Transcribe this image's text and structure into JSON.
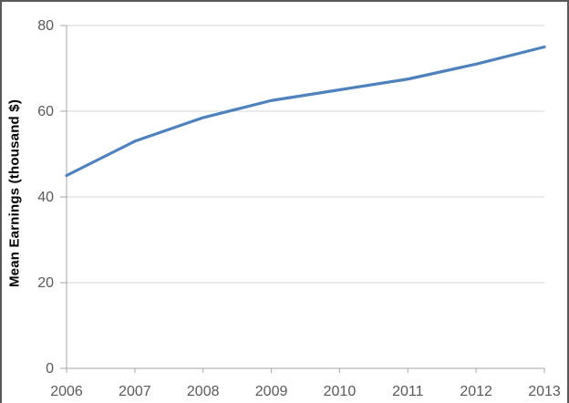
{
  "window": {
    "background": "#ffffff",
    "frame_border_color": "#595959"
  },
  "chart_data": {
    "type": "line",
    "title": "",
    "xlabel": "",
    "ylabel": "Mean Earnings (thousand $)",
    "categories": [
      "2006",
      "2007",
      "2008",
      "2009",
      "2010",
      "2011",
      "2012",
      "2013"
    ],
    "values": [
      45,
      53,
      58.5,
      62.5,
      65,
      67.5,
      71,
      75
    ],
    "ylim": [
      0,
      80
    ],
    "yticks": [
      0,
      20,
      40,
      60,
      80
    ],
    "grid": "horizontal",
    "legend": "none",
    "colors": {
      "line": "#4F81BD",
      "gridline": "#D6D6D6",
      "axis": "#A6A6A6",
      "tick_label": "#595959",
      "axis_title": "#000000"
    }
  }
}
